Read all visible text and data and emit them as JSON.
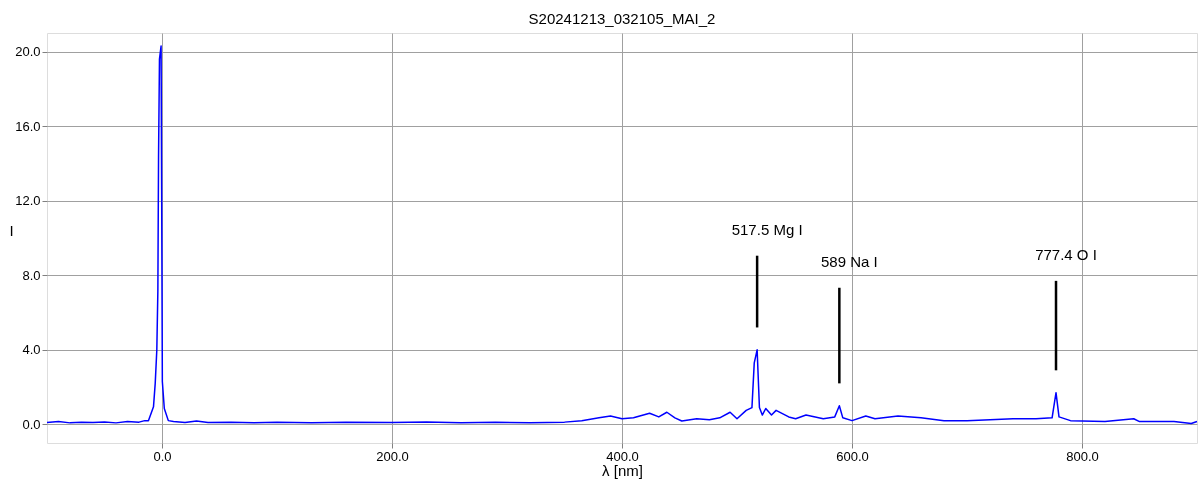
{
  "chart_data": {
    "type": "line",
    "title": "S20241213_032105_MAI_2",
    "xlabel": "λ [nm]",
    "ylabel": "I",
    "x": [
      -100,
      -90,
      -80,
      -70,
      -60,
      -50,
      -40,
      -30,
      -20,
      -15,
      -11.8,
      -7.4,
      -5.9,
      -4.5,
      -3.6,
      -3.0,
      -2.2,
      -0.8,
      -0.3,
      0.3,
      2.0,
      5.5,
      10,
      20,
      30,
      40,
      60,
      80,
      100,
      130,
      160,
      200,
      230,
      260,
      290,
      320,
      350,
      365,
      380,
      390,
      400,
      410,
      424,
      432,
      439,
      446,
      452,
      465,
      476,
      485,
      494,
      500,
      508,
      513,
      515,
      517.5,
      519.5,
      522,
      525,
      530,
      534,
      545,
      551,
      560,
      575,
      585,
      589,
      592,
      600,
      612,
      620,
      640,
      660,
      680,
      700,
      720,
      740,
      760,
      774,
      777.4,
      780,
      790,
      820,
      845,
      850,
      880,
      895,
      900
    ],
    "series": [
      {
        "color": "#0000ff",
        "values": [
          0.1,
          0.15,
          0.08,
          0.12,
          0.1,
          0.13,
          0.08,
          0.15,
          0.12,
          0.2,
          0.2,
          0.94,
          2.2,
          4.0,
          7.15,
          14.4,
          19.6,
          20.3,
          12.6,
          2.3,
          0.85,
          0.2,
          0.15,
          0.1,
          0.18,
          0.1,
          0.12,
          0.08,
          0.12,
          0.08,
          0.12,
          0.1,
          0.13,
          0.08,
          0.12,
          0.08,
          0.12,
          0.2,
          0.35,
          0.45,
          0.3,
          0.35,
          0.6,
          0.4,
          0.65,
          0.35,
          0.18,
          0.3,
          0.25,
          0.35,
          0.65,
          0.3,
          0.75,
          0.9,
          3.3,
          4.0,
          0.9,
          0.5,
          0.85,
          0.5,
          0.75,
          0.4,
          0.3,
          0.5,
          0.3,
          0.4,
          1.0,
          0.35,
          0.2,
          0.45,
          0.3,
          0.45,
          0.35,
          0.2,
          0.2,
          0.25,
          0.3,
          0.3,
          0.35,
          1.7,
          0.4,
          0.2,
          0.15,
          0.3,
          0.15,
          0.15,
          0.05,
          0.15
        ]
      },
      {
        "type": "line",
        "color": "#000000",
        "x": [
          517.5,
          517.5
        ],
        "values": [
          5.2,
          9.05
        ]
      },
      {
        "type": "line",
        "color": "#000000",
        "x": [
          589,
          589
        ],
        "values": [
          2.2,
          7.33
        ]
      },
      {
        "type": "line",
        "color": "#000000",
        "x": [
          777.4,
          777.4
        ],
        "values": [
          2.9,
          7.7
        ]
      }
    ],
    "xlim": [
      -100,
      900
    ],
    "xticks": [
      {
        "value": 0,
        "label": "0.0"
      },
      {
        "value": 200,
        "label": "200.0"
      },
      {
        "value": 400,
        "label": "400.0"
      },
      {
        "value": 600,
        "label": "600.0"
      },
      {
        "value": 800,
        "label": "800.0"
      }
    ],
    "ylim": [
      -1.0,
      21.0
    ],
    "yticks": [
      {
        "value": 0,
        "label": "0.0"
      },
      {
        "value": 4,
        "label": "4.0"
      },
      {
        "value": 8,
        "label": "8.0"
      },
      {
        "value": 12,
        "label": "12.0"
      },
      {
        "value": 16,
        "label": "16.0"
      },
      {
        "value": 20,
        "label": "20.0"
      }
    ],
    "annotations": [
      {
        "text": "517.5 Mg I",
        "x": 517.5,
        "y": 9.05
      },
      {
        "text": "589 Na I",
        "x": 589,
        "y": 7.33
      },
      {
        "text": "777.4 O I",
        "x": 777.4,
        "y": 7.7
      }
    ],
    "grid": true,
    "legend": false,
    "marker": "none",
    "line_style": "solid"
  }
}
